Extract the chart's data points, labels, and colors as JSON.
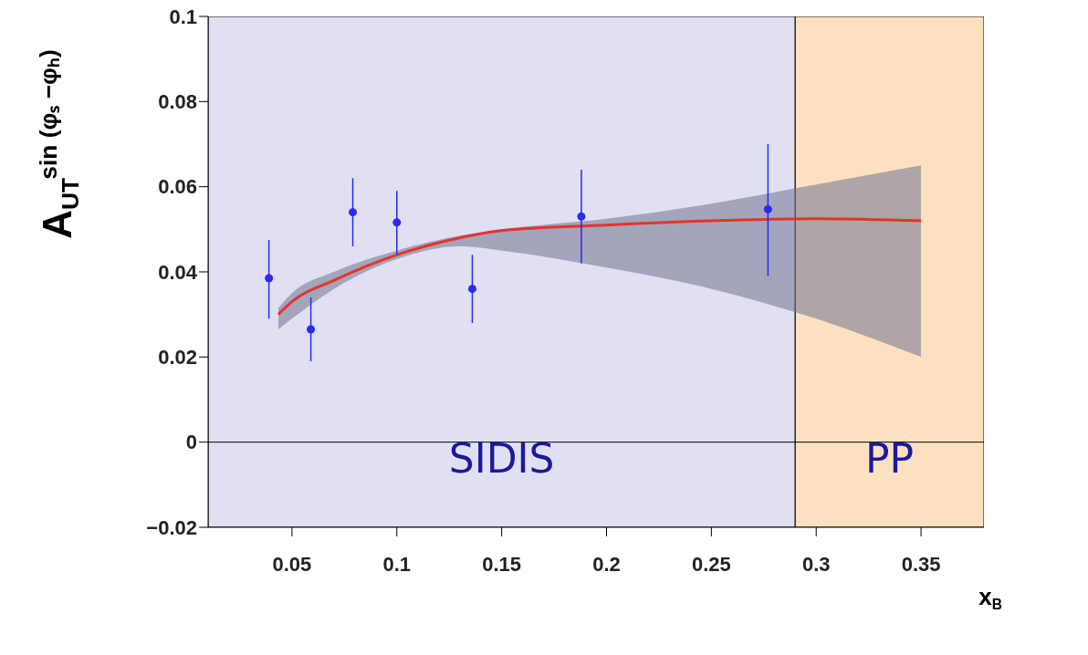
{
  "chart_data": {
    "type": "scatter",
    "xlabel": "x$_{B}$",
    "ylabel": "A$_{UT}$$^{sin (φₛ −φₕ)}$",
    "xlim": [
      0.01,
      0.38
    ],
    "xticks": [
      0.05,
      0.1,
      0.15,
      0.2,
      0.25,
      0.3,
      0.35
    ],
    "ylim": [
      -0.02,
      0.1
    ],
    "yticks": [
      {
        "value": -0.02,
        "label": "−0.02"
      },
      0,
      0.02,
      0.04,
      0.06,
      0.08,
      0.1
    ],
    "grid": false,
    "legend": false,
    "series": [
      {
        "type": "line",
        "color": "#e8322a",
        "marker": "none",
        "line_style": "solid",
        "x": [
          0.0435,
          0.05,
          0.07,
          0.1,
          0.13,
          0.15,
          0.2,
          0.25,
          0.3,
          0.35
        ],
        "values": [
          0.03,
          0.033,
          0.038,
          0.044,
          0.048,
          0.0497,
          0.051,
          0.052,
          0.0525,
          0.052
        ],
        "lower": [
          0.0265,
          0.029,
          0.036,
          0.043,
          0.046,
          0.045,
          0.041,
          0.036,
          0.029,
          0.02
        ],
        "upper": [
          0.0315,
          0.035,
          0.04,
          0.045,
          0.0485,
          0.05,
          0.0525,
          0.056,
          0.0605,
          0.065
        ]
      },
      {
        "color": "#2a2af0",
        "marker": "circle",
        "x": [
          0.039,
          0.059,
          0.079,
          0.1,
          0.136,
          0.188,
          0.277
        ],
        "values": [
          0.0385,
          0.0265,
          0.054,
          0.0516,
          0.036,
          0.053,
          0.0547
        ],
        "errors": [
          [
            0.029,
            0.0475
          ],
          [
            0.019,
            0.034
          ],
          [
            0.046,
            0.062
          ],
          [
            0.044,
            0.059
          ],
          [
            0.028,
            0.044
          ],
          [
            0.042,
            0.064
          ],
          [
            0.039,
            0.07
          ]
        ]
      }
    ],
    "ref_lines": [
      {
        "axis": "y",
        "value": 0,
        "color": "#000000"
      }
    ],
    "bands": [
      {
        "axis": "x",
        "from": 0.01,
        "to": 0.29,
        "label": "SIDIS",
        "color": "#e0e0f2"
      },
      {
        "axis": "x",
        "from": 0.29,
        "to": 0.38,
        "label": "PP",
        "color": "#fde0c0"
      }
    ]
  }
}
